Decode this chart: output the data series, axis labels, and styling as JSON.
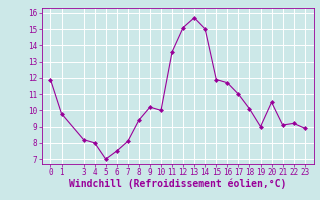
{
  "x": [
    0,
    1,
    3,
    4,
    5,
    6,
    7,
    8,
    9,
    10,
    11,
    12,
    13,
    14,
    15,
    16,
    17,
    18,
    19,
    20,
    21,
    22,
    23
  ],
  "y": [
    11.9,
    9.8,
    8.2,
    8.0,
    7.0,
    7.5,
    8.1,
    9.4,
    10.2,
    10.0,
    13.6,
    15.1,
    15.7,
    15.0,
    11.9,
    11.7,
    11.0,
    10.1,
    9.0,
    10.5,
    9.1,
    9.2,
    8.9
  ],
  "line_color": "#990099",
  "marker": "D",
  "marker_size": 2.0,
  "bg_color": "#cce8e8",
  "grid_color": "#ffffff",
  "xlabel": "Windchill (Refroidissement éolien,°C)",
  "xlabel_color": "#990099",
  "tick_color": "#990099",
  "ylim": [
    6.7,
    16.3
  ],
  "xlim": [
    -0.8,
    23.8
  ],
  "yticks": [
    7,
    8,
    9,
    10,
    11,
    12,
    13,
    14,
    15,
    16
  ],
  "xticks": [
    0,
    1,
    3,
    4,
    5,
    6,
    7,
    8,
    9,
    10,
    11,
    12,
    13,
    14,
    15,
    16,
    17,
    18,
    19,
    20,
    21,
    22,
    23
  ],
  "tick_fontsize": 5.5,
  "xlabel_fontsize": 7.0
}
